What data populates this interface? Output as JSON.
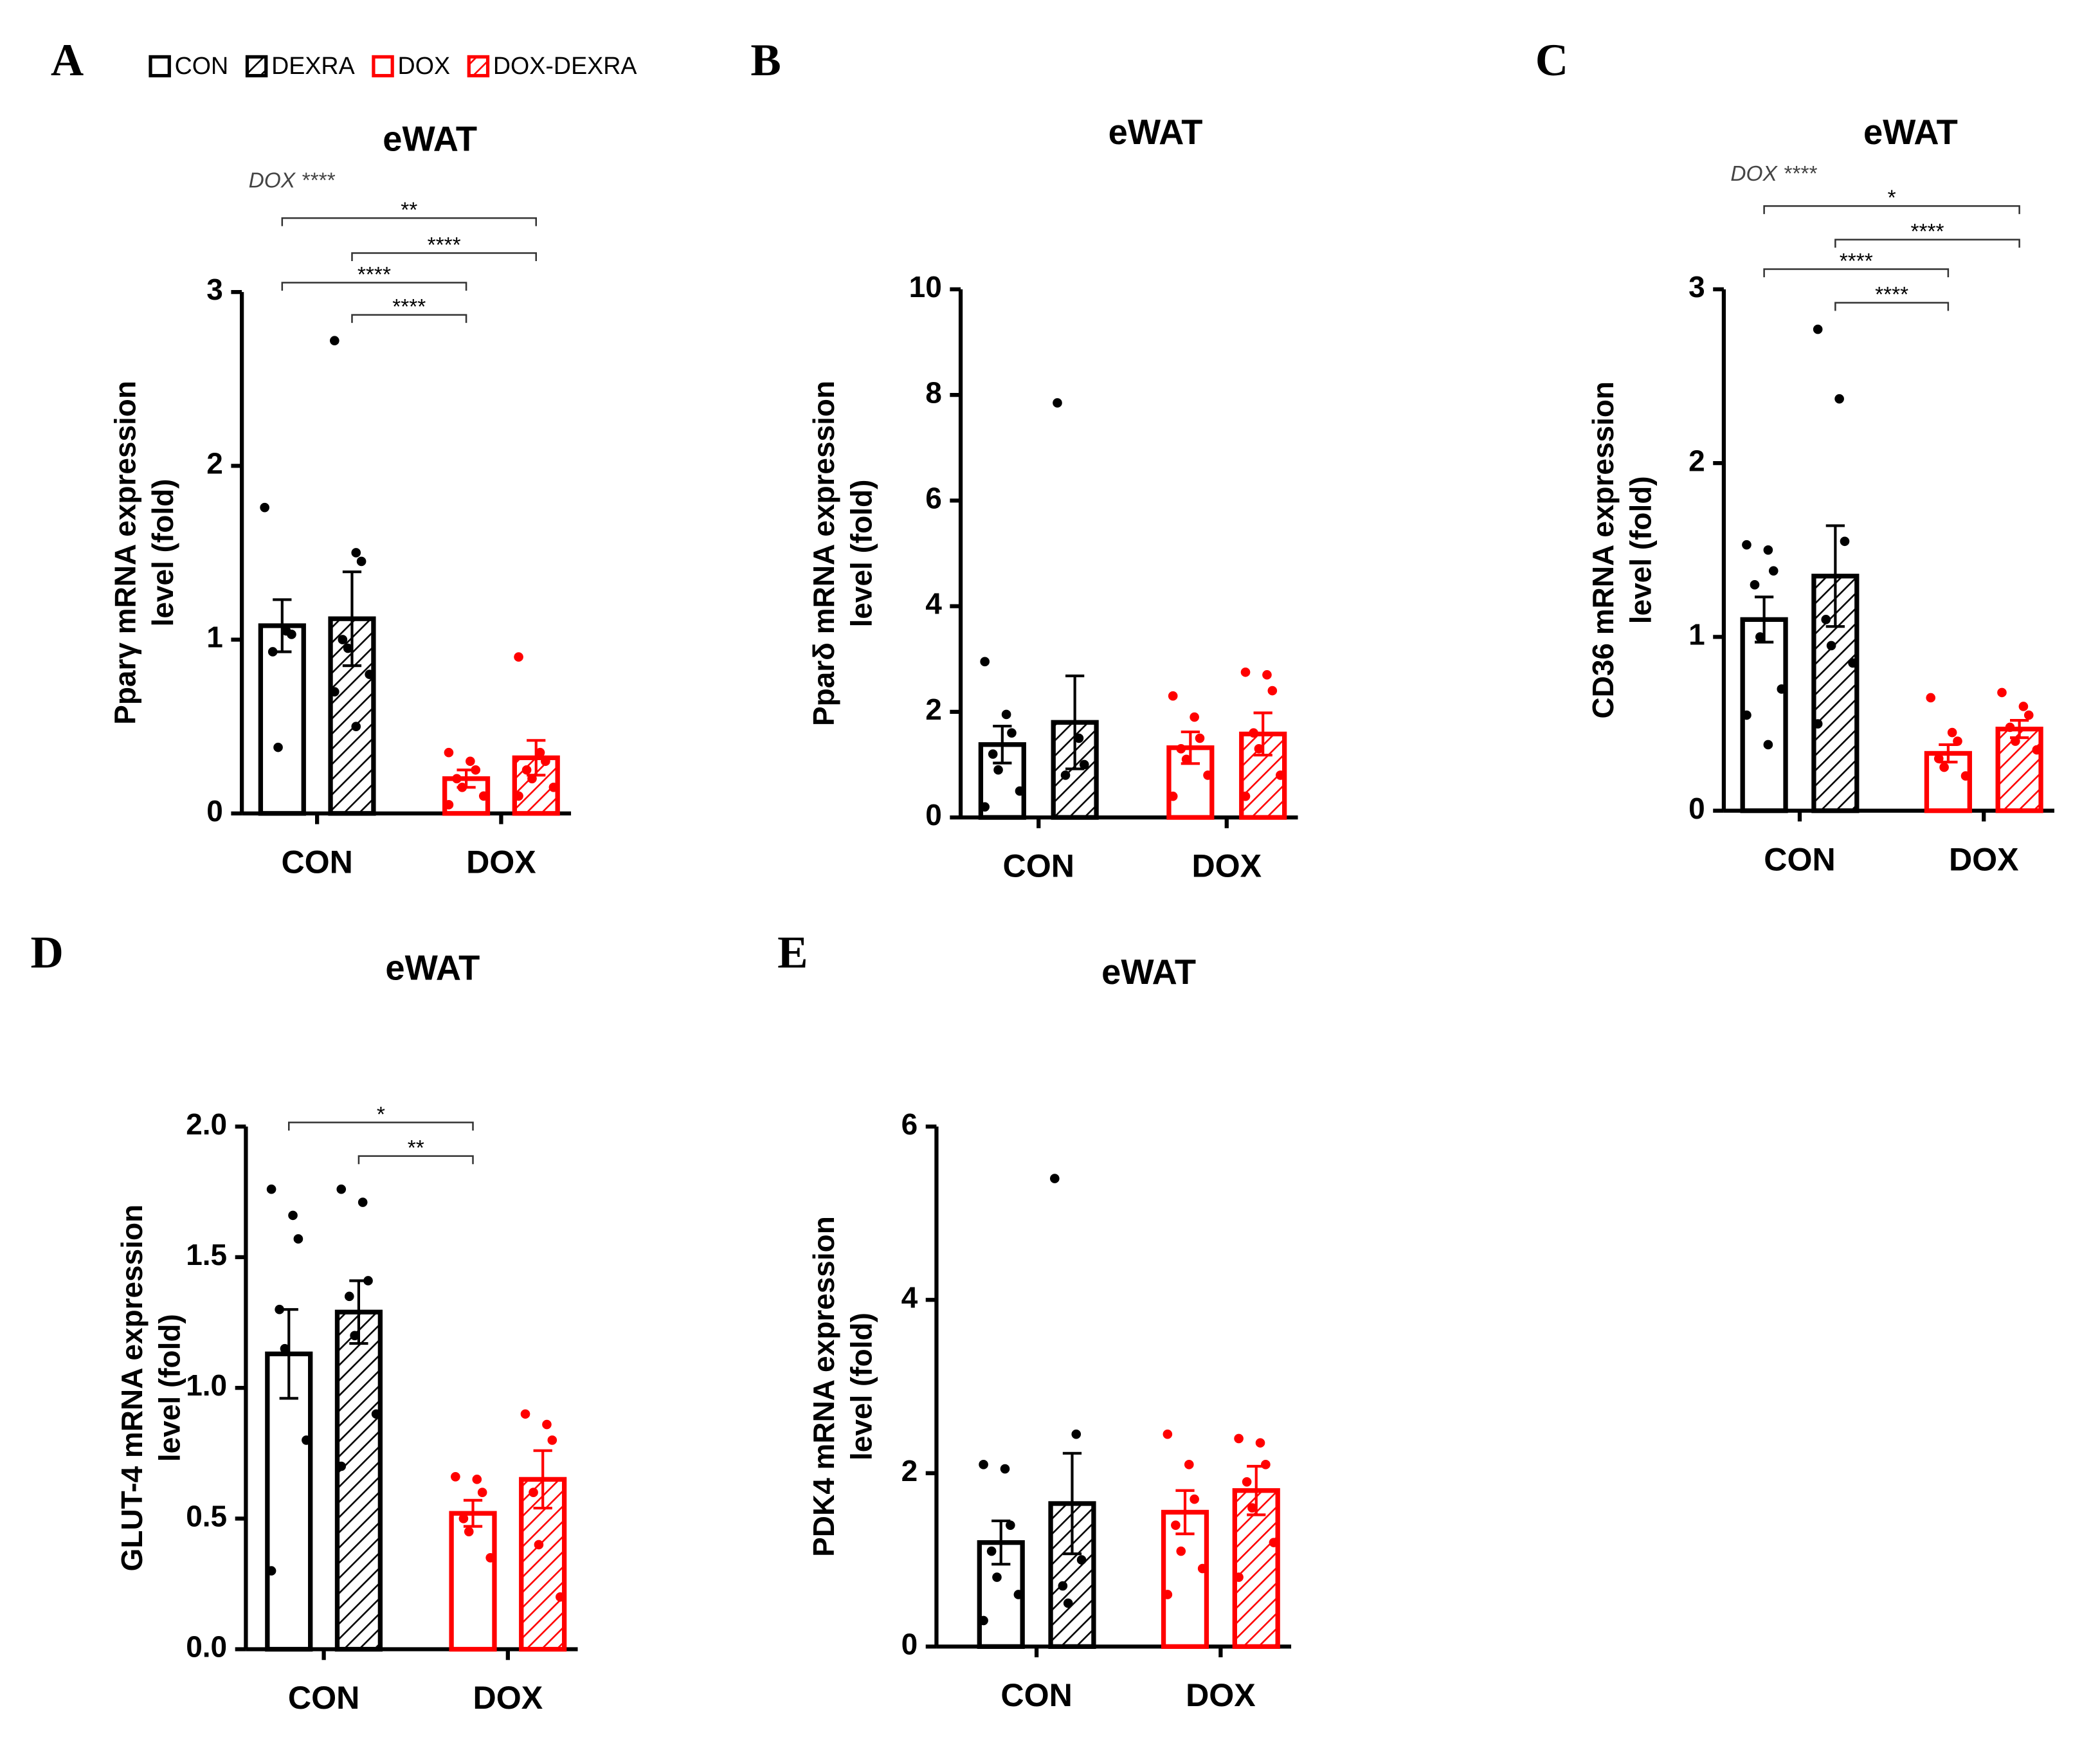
{
  "legend": [
    {
      "name": "CON",
      "color": "#000000",
      "hatch": false
    },
    {
      "name": "DEXRA",
      "color": "#000000",
      "hatch": true
    },
    {
      "name": "DOX",
      "color": "#ff0000",
      "hatch": false
    },
    {
      "name": "DOX-DEXRA",
      "color": "#ff0000",
      "hatch": true
    }
  ],
  "chart_data": [
    {
      "type": "bar",
      "panel": "A",
      "title": "eWAT",
      "ylabel": [
        "Pparγ mRNA expression",
        "level (fold)"
      ],
      "annotation": "DOX ****",
      "categories": [
        "CON",
        "DOX"
      ],
      "ylim": [
        0,
        3
      ],
      "yticks": [
        0,
        1,
        2,
        3
      ],
      "series": [
        {
          "value": 1.08,
          "error": 0.15,
          "points": [
            1.76,
            1.05,
            1.03,
            0.93,
            0.38
          ]
        },
        {
          "value": 1.12,
          "error": 0.27,
          "points": [
            2.72,
            1.5,
            1.45,
            1.0,
            0.95,
            0.8,
            0.7,
            0.5
          ]
        },
        {
          "value": 0.2,
          "error": 0.05,
          "points": [
            0.35,
            0.3,
            0.25,
            0.2,
            0.15,
            0.1,
            0.05
          ]
        },
        {
          "value": 0.32,
          "error": 0.1,
          "points": [
            0.9,
            0.35,
            0.3,
            0.25,
            0.2,
            0.15,
            0.1
          ]
        }
      ],
      "significance": [
        {
          "text": "**",
          "from": 0,
          "to": 3
        },
        {
          "text": "****",
          "from": 1,
          "to": 3
        },
        {
          "text": "****",
          "from": 0,
          "to": 2
        },
        {
          "text": "****",
          "from": 1,
          "to": 2
        }
      ]
    },
    {
      "type": "bar",
      "panel": "B",
      "title": "eWAT",
      "ylabel": [
        "Pparδ mRNA expression",
        "level (fold)"
      ],
      "categories": [
        "CON",
        "DOX"
      ],
      "ylim": [
        0,
        10
      ],
      "yticks": [
        0,
        2,
        4,
        6,
        8,
        10
      ],
      "series": [
        {
          "value": 1.38,
          "error": 0.35,
          "points": [
            2.95,
            1.95,
            1.6,
            1.2,
            0.9,
            0.5,
            0.2
          ]
        },
        {
          "value": 1.8,
          "error": 0.88,
          "points": [
            7.85,
            1.5,
            1.0,
            0.8
          ]
        },
        {
          "value": 1.32,
          "error": 0.3,
          "points": [
            2.3,
            1.9,
            1.5,
            1.3,
            1.1,
            0.8,
            0.4
          ]
        },
        {
          "value": 1.58,
          "error": 0.4,
          "points": [
            2.75,
            2.7,
            2.4,
            1.6,
            1.3,
            0.8,
            0.4
          ]
        }
      ],
      "significance": []
    },
    {
      "type": "bar",
      "panel": "C",
      "title": "eWAT",
      "ylabel": [
        "CD36 mRNA expression",
        "level (fold)"
      ],
      "annotation": "DOX ****",
      "categories": [
        "CON",
        "DOX"
      ],
      "ylim": [
        0,
        3
      ],
      "yticks": [
        0,
        1,
        2,
        3
      ],
      "series": [
        {
          "value": 1.1,
          "error": 0.13,
          "points": [
            1.53,
            1.5,
            1.38,
            1.3,
            1.0,
            0.7,
            0.55,
            0.38
          ]
        },
        {
          "value": 1.35,
          "error": 0.29,
          "points": [
            2.77,
            2.37,
            1.55,
            1.1,
            0.95,
            0.85,
            0.5
          ]
        },
        {
          "value": 0.33,
          "error": 0.05,
          "points": [
            0.65,
            0.45,
            0.4,
            0.3,
            0.25,
            0.2
          ]
        },
        {
          "value": 0.47,
          "error": 0.05,
          "points": [
            0.68,
            0.6,
            0.55,
            0.48,
            0.4,
            0.35
          ]
        }
      ],
      "significance": [
        {
          "text": "*",
          "from": 0,
          "to": 3
        },
        {
          "text": "****",
          "from": 1,
          "to": 3
        },
        {
          "text": "****",
          "from": 0,
          "to": 2
        },
        {
          "text": "****",
          "from": 1,
          "to": 2
        }
      ]
    },
    {
      "type": "bar",
      "panel": "D",
      "title": "eWAT",
      "ylabel": [
        "GLUT-4 mRNA expression",
        "level (fold)"
      ],
      "categories": [
        "CON",
        "DOX"
      ],
      "ylim": [
        0,
        2
      ],
      "yticks": [
        {
          "value": 0,
          "label": "0.0"
        },
        {
          "value": 0.5,
          "label": "0.5"
        },
        {
          "value": 1,
          "label": "1.0"
        },
        {
          "value": 1.5,
          "label": "1.5"
        },
        {
          "value": 2,
          "label": "2.0"
        }
      ],
      "series": [
        {
          "value": 1.13,
          "error": 0.17,
          "points": [
            1.76,
            1.66,
            1.57,
            1.3,
            1.15,
            0.8,
            0.3
          ]
        },
        {
          "value": 1.29,
          "error": 0.12,
          "points": [
            1.76,
            1.71,
            1.41,
            1.35,
            1.2,
            0.9,
            0.7
          ]
        },
        {
          "value": 0.52,
          "error": 0.05,
          "points": [
            0.66,
            0.65,
            0.6,
            0.5,
            0.45,
            0.35
          ]
        },
        {
          "value": 0.65,
          "error": 0.11,
          "points": [
            0.9,
            0.86,
            0.8,
            0.6,
            0.4,
            0.2
          ]
        }
      ],
      "significance": [
        {
          "text": "*",
          "from": 0,
          "to": 2
        },
        {
          "text": "**",
          "from": 1,
          "to": 2
        }
      ]
    },
    {
      "type": "bar",
      "panel": "E",
      "title": "eWAT",
      "ylabel": [
        "PDK4 mRNA expression",
        "level (fold)"
      ],
      "categories": [
        "CON",
        "DOX"
      ],
      "ylim": [
        0,
        6
      ],
      "yticks": [
        0,
        2,
        4,
        6
      ],
      "series": [
        {
          "value": 1.2,
          "error": 0.25,
          "points": [
            2.1,
            2.05,
            1.4,
            1.1,
            0.8,
            0.6,
            0.3
          ]
        },
        {
          "value": 1.65,
          "error": 0.58,
          "points": [
            5.4,
            2.45,
            1.0,
            0.7,
            0.5
          ]
        },
        {
          "value": 1.55,
          "error": 0.25,
          "points": [
            2.45,
            2.1,
            1.7,
            1.4,
            1.1,
            0.9,
            0.6
          ]
        },
        {
          "value": 1.8,
          "error": 0.28,
          "points": [
            2.4,
            2.35,
            2.1,
            1.9,
            1.6,
            1.2,
            0.8
          ]
        }
      ],
      "significance": []
    }
  ]
}
